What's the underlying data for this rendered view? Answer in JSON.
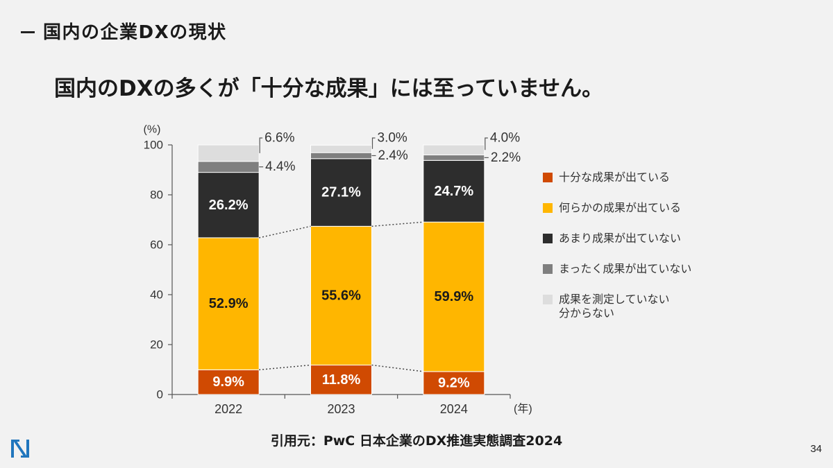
{
  "colors": {
    "background": "#f2f2f2",
    "text": "#1a1a1a",
    "logo": "#2176bd"
  },
  "slide": {
    "section_title": "国内の企業DXの現状",
    "headline": "国内のDXの多くが「十分な成果」には至っていません。",
    "source": "引用元：PwC 日本企業のDX推進実態調査2024",
    "page_number": "34",
    "logo_icon": "company-logo-mark"
  },
  "chart_data": {
    "type": "bar",
    "stacked": true,
    "categories": [
      "2022",
      "2023",
      "2024"
    ],
    "xlabel": "(年)",
    "ylabel": "(%)",
    "ylim": [
      0,
      100
    ],
    "yticks": [
      0,
      20,
      40,
      60,
      80,
      100
    ],
    "grid": false,
    "legend": "right",
    "series": [
      {
        "name": "十分な成果が出ている",
        "color": "#d04a02",
        "label_color": "#ffffff",
        "values": [
          9.9,
          11.8,
          9.2
        ],
        "labels": [
          "9.9%",
          "11.8%",
          "9.2%"
        ]
      },
      {
        "name": "何らかの成果が出ている",
        "color": "#ffb600",
        "label_color": "#1a1a1a",
        "values": [
          52.9,
          55.6,
          59.9
        ],
        "labels": [
          "52.9%",
          "55.6%",
          "59.9%"
        ]
      },
      {
        "name": "あまり成果が出ていない",
        "color": "#2d2d2d",
        "label_color": "#ffffff",
        "values": [
          26.2,
          27.1,
          24.7
        ],
        "labels": [
          "26.2%",
          "27.1%",
          "24.7%"
        ]
      },
      {
        "name": "まったく成果が出ていない",
        "color": "#7f7f7f",
        "label_color": "#333333",
        "values": [
          4.4,
          2.4,
          2.2
        ],
        "labels": [
          "4.4%",
          "2.4%",
          "2.2%"
        ]
      },
      {
        "name": "成果を測定していない\n分からない",
        "color": "#dddddd",
        "label_color": "#333333",
        "values": [
          6.6,
          3.0,
          4.0
        ],
        "labels": [
          "6.6%",
          "3.0%",
          "4.0%"
        ]
      }
    ]
  }
}
